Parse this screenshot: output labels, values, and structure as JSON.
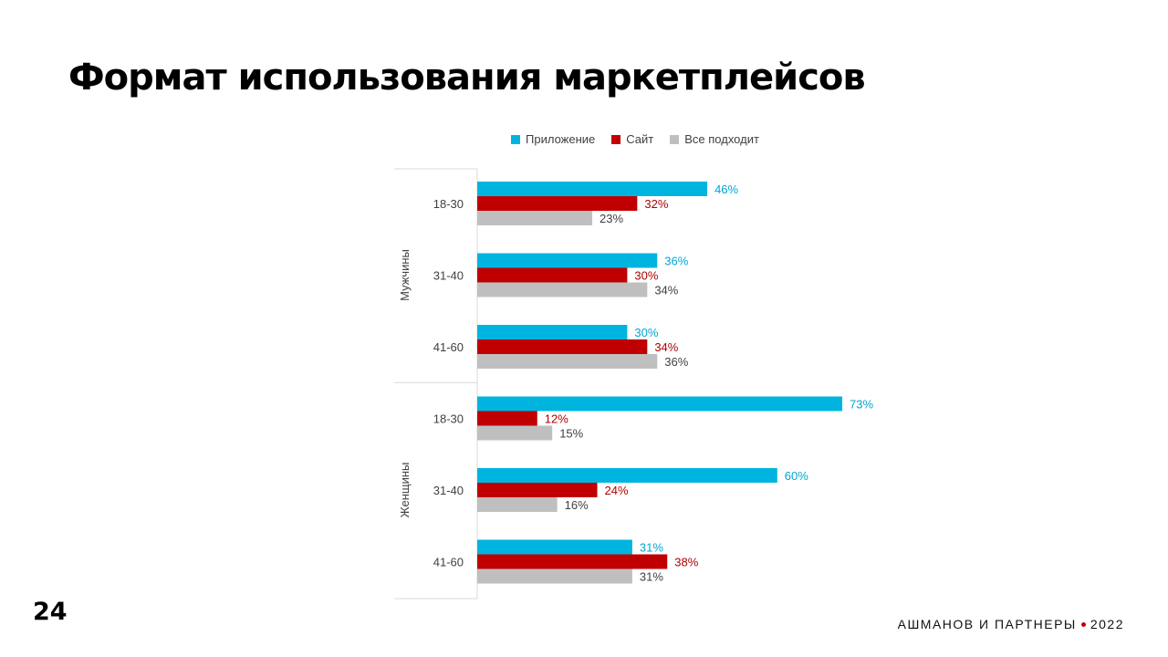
{
  "slide": {
    "title": "Формат использования маркетплейсов",
    "page_number": "24",
    "brand": "АШМАНОВ И ПАРТНЕРЫ",
    "year": "2022"
  },
  "colors": {
    "app": "#00b4e0",
    "site": "#c00000",
    "all": "#bfbfbf",
    "app_label": "#00a6d6",
    "site_label": "#b00000",
    "all_label": "#404040"
  },
  "chart_data": {
    "type": "bar",
    "orientation": "horizontal",
    "groups": [
      {
        "name": "Мужчины",
        "categories": [
          "18-30",
          "31-40",
          "41-60"
        ]
      },
      {
        "name": "Женщины",
        "categories": [
          "18-30",
          "31-40",
          "41-60"
        ]
      }
    ],
    "series": [
      {
        "name": "Приложение",
        "color": "#00b4e0",
        "values": [
          46,
          36,
          30,
          73,
          60,
          31
        ]
      },
      {
        "name": "Сайт",
        "color": "#c00000",
        "values": [
          32,
          30,
          34,
          12,
          24,
          38
        ]
      },
      {
        "name": "Все подходит",
        "color": "#bfbfbf",
        "values": [
          23,
          34,
          36,
          15,
          16,
          31
        ]
      }
    ],
    "value_suffix": "%",
    "legend_position": "top",
    "grid": false
  }
}
